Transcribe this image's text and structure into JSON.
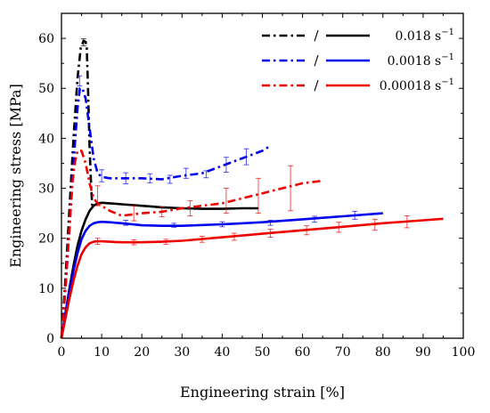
{
  "chart_data": {
    "type": "line",
    "xlabel": "Engineering strain [%]",
    "ylabel": "Engineering stress [MPa]",
    "xlim": [
      0,
      100
    ],
    "ylim": [
      0,
      65
    ],
    "x_ticks": [
      0,
      10,
      20,
      30,
      40,
      50,
      60,
      70,
      80,
      90,
      100
    ],
    "y_ticks": [
      0,
      10,
      20,
      30,
      40,
      50,
      60
    ],
    "grid": false,
    "legend_position": "top-right",
    "legend": [
      {
        "slash": "/",
        "label_main": "0.018 s",
        "label_exp": "−1",
        "color": "#000000"
      },
      {
        "slash": "/",
        "label_main": "0.0018 s",
        "label_exp": "−1",
        "color": "#0000ee"
      },
      {
        "slash": "/",
        "label_main": "0.00018 s",
        "label_exp": "−1",
        "color": "#ee0000"
      }
    ],
    "series": [
      {
        "name": "0.018 s⁻¹ (dash-dot)",
        "color": "#000000",
        "style": "dashdot",
        "x": [
          0,
          1,
          2,
          3,
          4,
          4.8,
          5.5,
          6,
          6.3,
          6.6,
          7.0,
          7.4,
          7.7
        ],
        "y": [
          0,
          12,
          26,
          40,
          52,
          58,
          59.5,
          59.3,
          58,
          50,
          38,
          30,
          26
        ]
      },
      {
        "name": "0.018 s⁻¹ (solid)",
        "color": "#000000",
        "style": "solid",
        "x": [
          0,
          1,
          2,
          3,
          4,
          5,
          6,
          7,
          8,
          9,
          10,
          12,
          15,
          20,
          25,
          30,
          35,
          40,
          45,
          49
        ],
        "y": [
          0,
          5,
          10,
          14.5,
          18.5,
          21.5,
          23.8,
          25.5,
          26.5,
          27,
          27.1,
          27,
          26.8,
          26.5,
          26.2,
          26,
          25.9,
          25.9,
          26,
          26
        ]
      },
      {
        "name": "0.0018 s⁻¹ (dash-dot)",
        "color": "#0000ee",
        "style": "dashdot",
        "x": [
          0,
          1,
          2,
          3,
          4,
          4.6,
          5.2,
          6,
          7,
          8,
          9,
          10,
          12,
          15,
          20,
          25,
          30,
          35,
          40,
          45,
          50,
          52
        ],
        "y": [
          0,
          10,
          22,
          35,
          46,
          50,
          50,
          48,
          42,
          36,
          33,
          32.3,
          32,
          32,
          32,
          31.8,
          32.5,
          33,
          34.5,
          36,
          37.5,
          38.5
        ]
      },
      {
        "name": "0.0018 s⁻¹ (solid)",
        "color": "#0000ee",
        "style": "solid",
        "x": [
          0,
          1,
          2,
          3,
          4,
          5,
          6,
          7,
          8,
          9,
          10,
          12,
          15,
          20,
          25,
          30,
          40,
          50,
          60,
          70,
          80
        ],
        "y": [
          0,
          5,
          9.5,
          13.5,
          17,
          19.8,
          21.5,
          22.5,
          23,
          23.2,
          23.3,
          23.2,
          23,
          22.6,
          22.5,
          22.5,
          22.8,
          23.2,
          23.8,
          24.4,
          25
        ]
      },
      {
        "name": "0.00018 s⁻¹ (dash-dot)",
        "color": "#ee0000",
        "style": "dashdot",
        "x": [
          0,
          1,
          2,
          2.7,
          3.3,
          4,
          5,
          6,
          7,
          8,
          9,
          10,
          12,
          15,
          20,
          25,
          30,
          35,
          40,
          45,
          50,
          55,
          60,
          65
        ],
        "y": [
          0,
          10,
          22,
          31,
          35,
          37.5,
          37.5,
          35,
          31,
          28,
          27,
          26.5,
          25.5,
          24.5,
          25,
          25.3,
          26,
          26.5,
          27,
          28,
          29,
          30,
          31,
          31.5
        ]
      },
      {
        "name": "0.00018 s⁻¹ (solid)",
        "color": "#ee0000",
        "style": "solid",
        "x": [
          0,
          1,
          2,
          3,
          4,
          5,
          6,
          7,
          8,
          9,
          10,
          12,
          15,
          20,
          25,
          30,
          40,
          50,
          60,
          70,
          80,
          90,
          95
        ],
        "y": [
          0,
          4,
          8,
          11.5,
          14.5,
          16.8,
          18.2,
          19,
          19.3,
          19.4,
          19.4,
          19.3,
          19.2,
          19.2,
          19.3,
          19.5,
          20.2,
          20.9,
          21.6,
          22.3,
          23,
          23.6,
          23.9
        ]
      }
    ],
    "error_bars": [
      {
        "color": "#000000",
        "points": [
          {
            "x": 5.5,
            "y": 59.2,
            "e": 0.7
          }
        ]
      },
      {
        "color": "#0000ee",
        "points": [
          {
            "x": 4.5,
            "y": 51.5,
            "e": 1.0
          },
          {
            "x": 10,
            "y": 32.5,
            "e": 1.2
          },
          {
            "x": 16,
            "y": 32,
            "e": 1.1
          },
          {
            "x": 22,
            "y": 32,
            "e": 0.9
          },
          {
            "x": 27,
            "y": 31.8,
            "e": 0.8
          },
          {
            "x": 31,
            "y": 33,
            "e": 1.0
          },
          {
            "x": 36,
            "y": 32.8,
            "e": 0.7
          },
          {
            "x": 41,
            "y": 34.7,
            "e": 1.5
          },
          {
            "x": 46,
            "y": 36.3,
            "e": 1.6
          },
          {
            "x": 16,
            "y": 23.1,
            "e": 0.5
          },
          {
            "x": 28,
            "y": 22.6,
            "e": 0.4
          },
          {
            "x": 40,
            "y": 22.8,
            "e": 0.5
          },
          {
            "x": 52,
            "y": 23.1,
            "e": 0.5
          },
          {
            "x": 63,
            "y": 23.8,
            "e": 0.6
          },
          {
            "x": 73,
            "y": 24.6,
            "e": 0.8
          }
        ]
      },
      {
        "color": "#ee0000",
        "points": [
          {
            "x": 9,
            "y": 28.5,
            "e": 2.0
          },
          {
            "x": 18,
            "y": 25,
            "e": 1.5
          },
          {
            "x": 25,
            "y": 25.3,
            "e": 1.0
          },
          {
            "x": 32,
            "y": 26,
            "e": 1.5
          },
          {
            "x": 41,
            "y": 27.5,
            "e": 2.5
          },
          {
            "x": 49,
            "y": 28.5,
            "e": 3.5
          },
          {
            "x": 57,
            "y": 30,
            "e": 4.5
          },
          {
            "x": 9,
            "y": 19.4,
            "e": 0.6
          },
          {
            "x": 18,
            "y": 19.2,
            "e": 0.5
          },
          {
            "x": 26,
            "y": 19.3,
            "e": 0.5
          },
          {
            "x": 35,
            "y": 19.8,
            "e": 0.6
          },
          {
            "x": 43,
            "y": 20.3,
            "e": 0.7
          },
          {
            "x": 52,
            "y": 21,
            "e": 0.8
          },
          {
            "x": 61,
            "y": 21.6,
            "e": 0.9
          },
          {
            "x": 69,
            "y": 22.2,
            "e": 1.0
          },
          {
            "x": 78,
            "y": 22.7,
            "e": 1.1
          },
          {
            "x": 86,
            "y": 23.3,
            "e": 1.2
          }
        ]
      }
    ]
  }
}
